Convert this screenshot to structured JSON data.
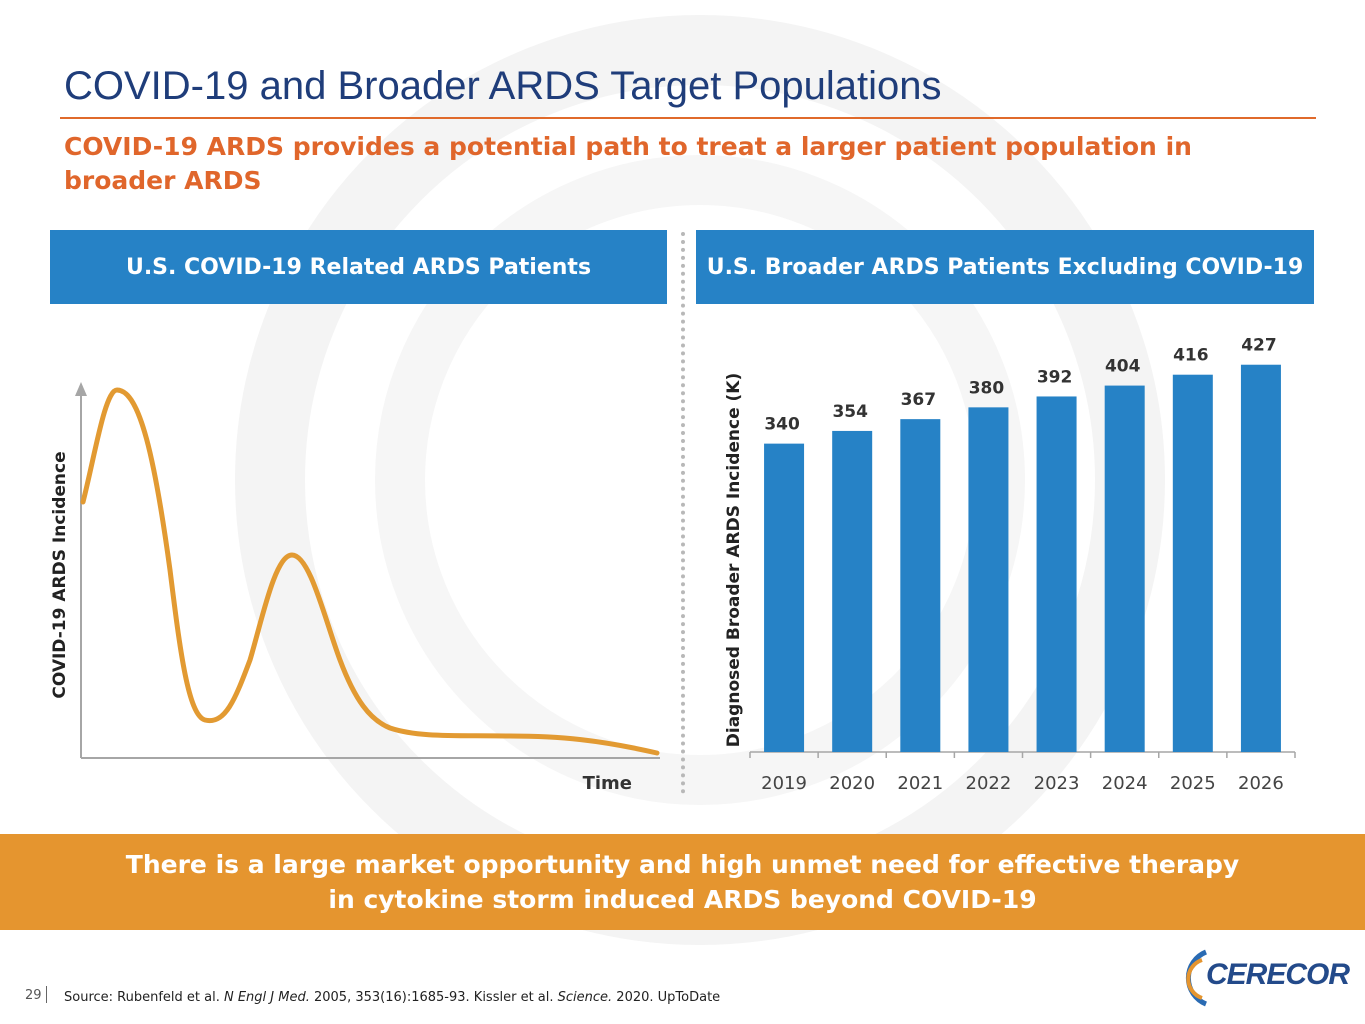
{
  "title": "COVID-19 and Broader ARDS Target Populations",
  "subtitle": "COVID-19 ARDS provides a potential path to treat a larger patient population in broader ARDS",
  "colors": {
    "title": "#1f3d7a",
    "accent": "#e0662b",
    "panel_header": "#2682c6",
    "bar": "#2682c6",
    "curve": "#e29a32",
    "banner": "#e5952f"
  },
  "left_panel": {
    "header": "U.S. COVID-19 Related ARDS Patients",
    "y_axis_label": "COVID-19 ARDS Incidence",
    "x_axis_label": "Time"
  },
  "right_panel": {
    "header": "U.S. Broader ARDS Patients Excluding COVID-19"
  },
  "chart_data": {
    "type": "bar",
    "title": "U.S. Broader ARDS Patients Excluding COVID-19",
    "categories": [
      "2019",
      "2020",
      "2021",
      "2022",
      "2023",
      "2024",
      "2025",
      "2026"
    ],
    "values": [
      340,
      354,
      367,
      380,
      392,
      404,
      416,
      427
    ],
    "data_labels": [
      "340",
      "354",
      "367",
      "380",
      "392",
      "404",
      "416",
      "427"
    ],
    "xlabel": "",
    "ylabel": "Diagnosed Broader ARDS Incidence (K)",
    "ylim": [
      0,
      430
    ],
    "grid": false
  },
  "banner": {
    "line1": "There is a large market opportunity and high unmet need for effective therapy",
    "line2": "in cytokine storm induced ARDS beyond COVID-19"
  },
  "footer": {
    "page_number": "29",
    "source_prefix": "Source: Rubenfeld et al. ",
    "source_journal1": "N Engl J Med.",
    "source_mid": " 2005, 353(16):1685-93. Kissler et al. ",
    "source_journal2": "Science.",
    "source_suffix": " 2020. UpToDate",
    "logo_text": "CERECOR"
  }
}
